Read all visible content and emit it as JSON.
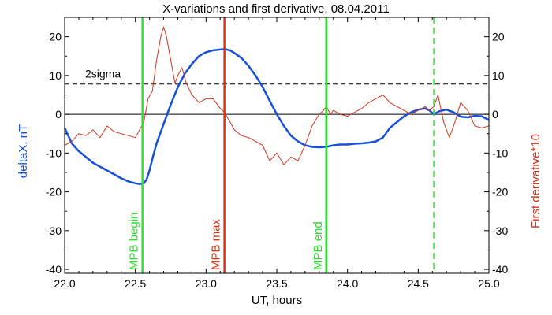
{
  "chart_data": {
    "type": "line",
    "title": "X-variations and first derivative, 08.04.2011",
    "xlabel": "UT, hours",
    "ylabel_left": "deltaX, nT",
    "ylabel_right": "First derivative*10",
    "xlim": [
      22.0,
      25.0
    ],
    "ylim": [
      -41,
      25
    ],
    "x_ticks": [
      22.0,
      22.5,
      23.0,
      23.5,
      24.0,
      24.5,
      25.0
    ],
    "x_tick_labels": [
      "22.0",
      "22.5",
      "23.0",
      "23.5",
      "24.0",
      "24.5",
      "25.0"
    ],
    "y_ticks": [
      20,
      10,
      0,
      -10,
      -20,
      -30,
      -40
    ],
    "y_tick_labels": [
      "20",
      "10",
      "0",
      "-10",
      "-20",
      "-30",
      "-40"
    ],
    "grid": false,
    "reference_lines": [
      {
        "kind": "hline",
        "y": 0,
        "color": "#000000",
        "style": "solid",
        "label": ""
      },
      {
        "kind": "hline",
        "y": 7.8,
        "color": "#000000",
        "style": "dashed",
        "label": "2sigma"
      }
    ],
    "markers": [
      {
        "x": 22.55,
        "label": "MPB begin",
        "color": "#2ee02e",
        "style": "solid"
      },
      {
        "x": 23.13,
        "label": "MPB max",
        "color": "#e03010",
        "style": "solid"
      },
      {
        "x": 23.85,
        "label": "MPB end",
        "color": "#2ee02e",
        "style": "solid"
      },
      {
        "x": 24.61,
        "label": "",
        "color": "#2ee02e",
        "style": "dashed"
      }
    ],
    "series": [
      {
        "name": "deltaX, nT",
        "color": "#1650d8",
        "x": [
          22.0,
          22.05,
          22.1,
          22.15,
          22.2,
          22.25,
          22.3,
          22.35,
          22.4,
          22.45,
          22.5,
          22.53,
          22.56,
          22.58,
          22.6,
          22.62,
          22.65,
          22.7,
          22.75,
          22.8,
          22.85,
          22.9,
          22.95,
          23.0,
          23.05,
          23.1,
          23.13,
          23.17,
          23.2,
          23.25,
          23.3,
          23.35,
          23.4,
          23.45,
          23.5,
          23.55,
          23.6,
          23.65,
          23.7,
          23.75,
          23.8,
          23.85,
          23.9,
          23.95,
          24.0,
          24.05,
          24.1,
          24.15,
          24.2,
          24.25,
          24.3,
          24.35,
          24.4,
          24.45,
          24.5,
          24.55,
          24.58,
          24.61,
          24.65,
          24.7,
          24.75,
          24.8,
          24.85,
          24.9,
          24.95,
          25.0
        ],
        "values": [
          -3.5,
          -7.5,
          -9.5,
          -11,
          -12.5,
          -13.5,
          -14.5,
          -15.5,
          -16.5,
          -17.3,
          -17.8,
          -18.0,
          -17.8,
          -16.8,
          -14.5,
          -11.5,
          -7.5,
          -2.5,
          2.5,
          7.0,
          10.5,
          13.0,
          15.0,
          16.0,
          16.5,
          16.7,
          16.8,
          16.5,
          15.8,
          14.5,
          12.5,
          10.0,
          7.0,
          3.5,
          0.0,
          -3.0,
          -5.5,
          -7.0,
          -8.0,
          -8.4,
          -8.5,
          -8.4,
          -8.0,
          -7.8,
          -7.8,
          -7.6,
          -7.5,
          -7.3,
          -7.0,
          -6.0,
          -3.5,
          -2.0,
          -0.5,
          0.5,
          1.2,
          1.5,
          1.0,
          0.0,
          0.8,
          1.2,
          0.5,
          -0.6,
          -0.8,
          -0.4,
          -0.5,
          -1.5
        ]
      },
      {
        "name": "First derivative*10",
        "color": "#d0341c",
        "x": [
          22.0,
          22.05,
          22.1,
          22.15,
          22.2,
          22.25,
          22.3,
          22.35,
          22.4,
          22.45,
          22.5,
          22.53,
          22.56,
          22.59,
          22.62,
          22.65,
          22.68,
          22.7,
          22.72,
          22.75,
          22.78,
          22.8,
          22.83,
          22.86,
          22.9,
          22.95,
          23.0,
          23.05,
          23.1,
          23.13,
          23.17,
          23.2,
          23.25,
          23.3,
          23.35,
          23.4,
          23.45,
          23.5,
          23.55,
          23.6,
          23.65,
          23.7,
          23.75,
          23.8,
          23.83,
          23.85,
          23.88,
          23.9,
          23.95,
          24.0,
          24.05,
          24.1,
          24.15,
          24.2,
          24.25,
          24.3,
          24.35,
          24.4,
          24.45,
          24.5,
          24.55,
          24.58,
          24.61,
          24.64,
          24.68,
          24.72,
          24.76,
          24.8,
          24.85,
          24.9,
          24.95,
          25.0
        ],
        "values": [
          -8,
          -7,
          -5,
          -5.5,
          -4,
          -6,
          -3,
          -4.5,
          -5,
          -5.5,
          -6,
          -4,
          -2,
          4,
          6,
          14,
          20,
          22.5,
          20,
          14,
          8,
          10,
          12,
          8,
          5,
          3,
          4,
          4,
          1.5,
          0.5,
          -2,
          -4,
          -5.5,
          -6,
          -7,
          -8,
          -12,
          -10,
          -13,
          -11,
          -12,
          -8,
          -3,
          0,
          1,
          2,
          0,
          1,
          0,
          -0.5,
          0.5,
          1.5,
          3,
          4,
          5,
          3,
          2,
          1,
          0,
          1,
          2,
          1,
          2,
          5,
          -2,
          -6,
          -2,
          3,
          1,
          -3,
          -3.5,
          -3
        ]
      }
    ]
  }
}
